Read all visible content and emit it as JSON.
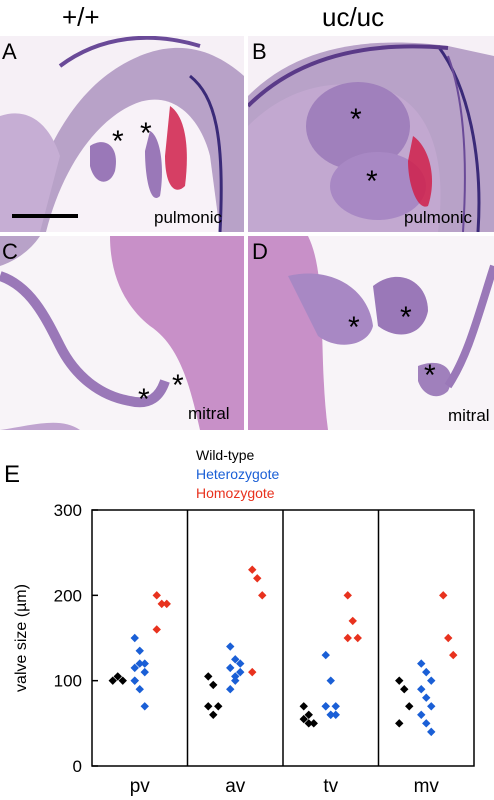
{
  "columns": {
    "wildtype_header": "+/+",
    "mutant_header": "uc/uc"
  },
  "panels": [
    {
      "letter": "A",
      "valve": "pulmonic"
    },
    {
      "letter": "B",
      "valve": "pulmonic"
    },
    {
      "letter": "C",
      "valve": "mitral"
    },
    {
      "letter": "D",
      "valve": "mitral"
    }
  ],
  "marker": "*",
  "colors": {
    "tissue": "#b8a2c8",
    "blood": "#d0204a",
    "nuclei": "#3a2a78",
    "fiber": "#c890c8"
  },
  "chart_data": {
    "type": "scatter",
    "panel_letter": "E",
    "ylabel": "valve size (µm)",
    "xlabel": "",
    "ylim": [
      0,
      300
    ],
    "yticks": [
      "0",
      "100",
      "200",
      "300"
    ],
    "categories": [
      "pv",
      "av",
      "tv",
      "mv"
    ],
    "legend": {
      "position": "top-center",
      "entries": [
        "Wild-type",
        "Heterozygote",
        "Homozygote"
      ]
    },
    "series": [
      {
        "name": "Wild-type",
        "color": "#000000",
        "values": {
          "pv": [
            100,
            105,
            100
          ],
          "av": [
            105,
            95,
            70,
            70,
            60
          ],
          "tv": [
            70,
            60,
            50,
            55,
            50
          ],
          "mv": [
            100,
            90,
            70,
            50
          ]
        }
      },
      {
        "name": "Heterozygote",
        "color": "#1a5fd6",
        "values": {
          "pv": [
            150,
            135,
            120,
            115,
            120,
            110,
            100,
            90,
            70,
            100
          ],
          "av": [
            140,
            125,
            110,
            115,
            105,
            120,
            90,
            100
          ],
          "tv": [
            130,
            100,
            70,
            70,
            60,
            60,
            70,
            60
          ],
          "mv": [
            120,
            110,
            100,
            90,
            80,
            70,
            60,
            50,
            40
          ]
        }
      },
      {
        "name": "Homozygote",
        "color": "#e8321e",
        "values": {
          "pv": [
            200,
            190,
            190,
            160
          ],
          "av": [
            230,
            220,
            200,
            110
          ],
          "tv": [
            200,
            170,
            150,
            150
          ],
          "mv": [
            200,
            150,
            130
          ]
        }
      }
    ]
  }
}
